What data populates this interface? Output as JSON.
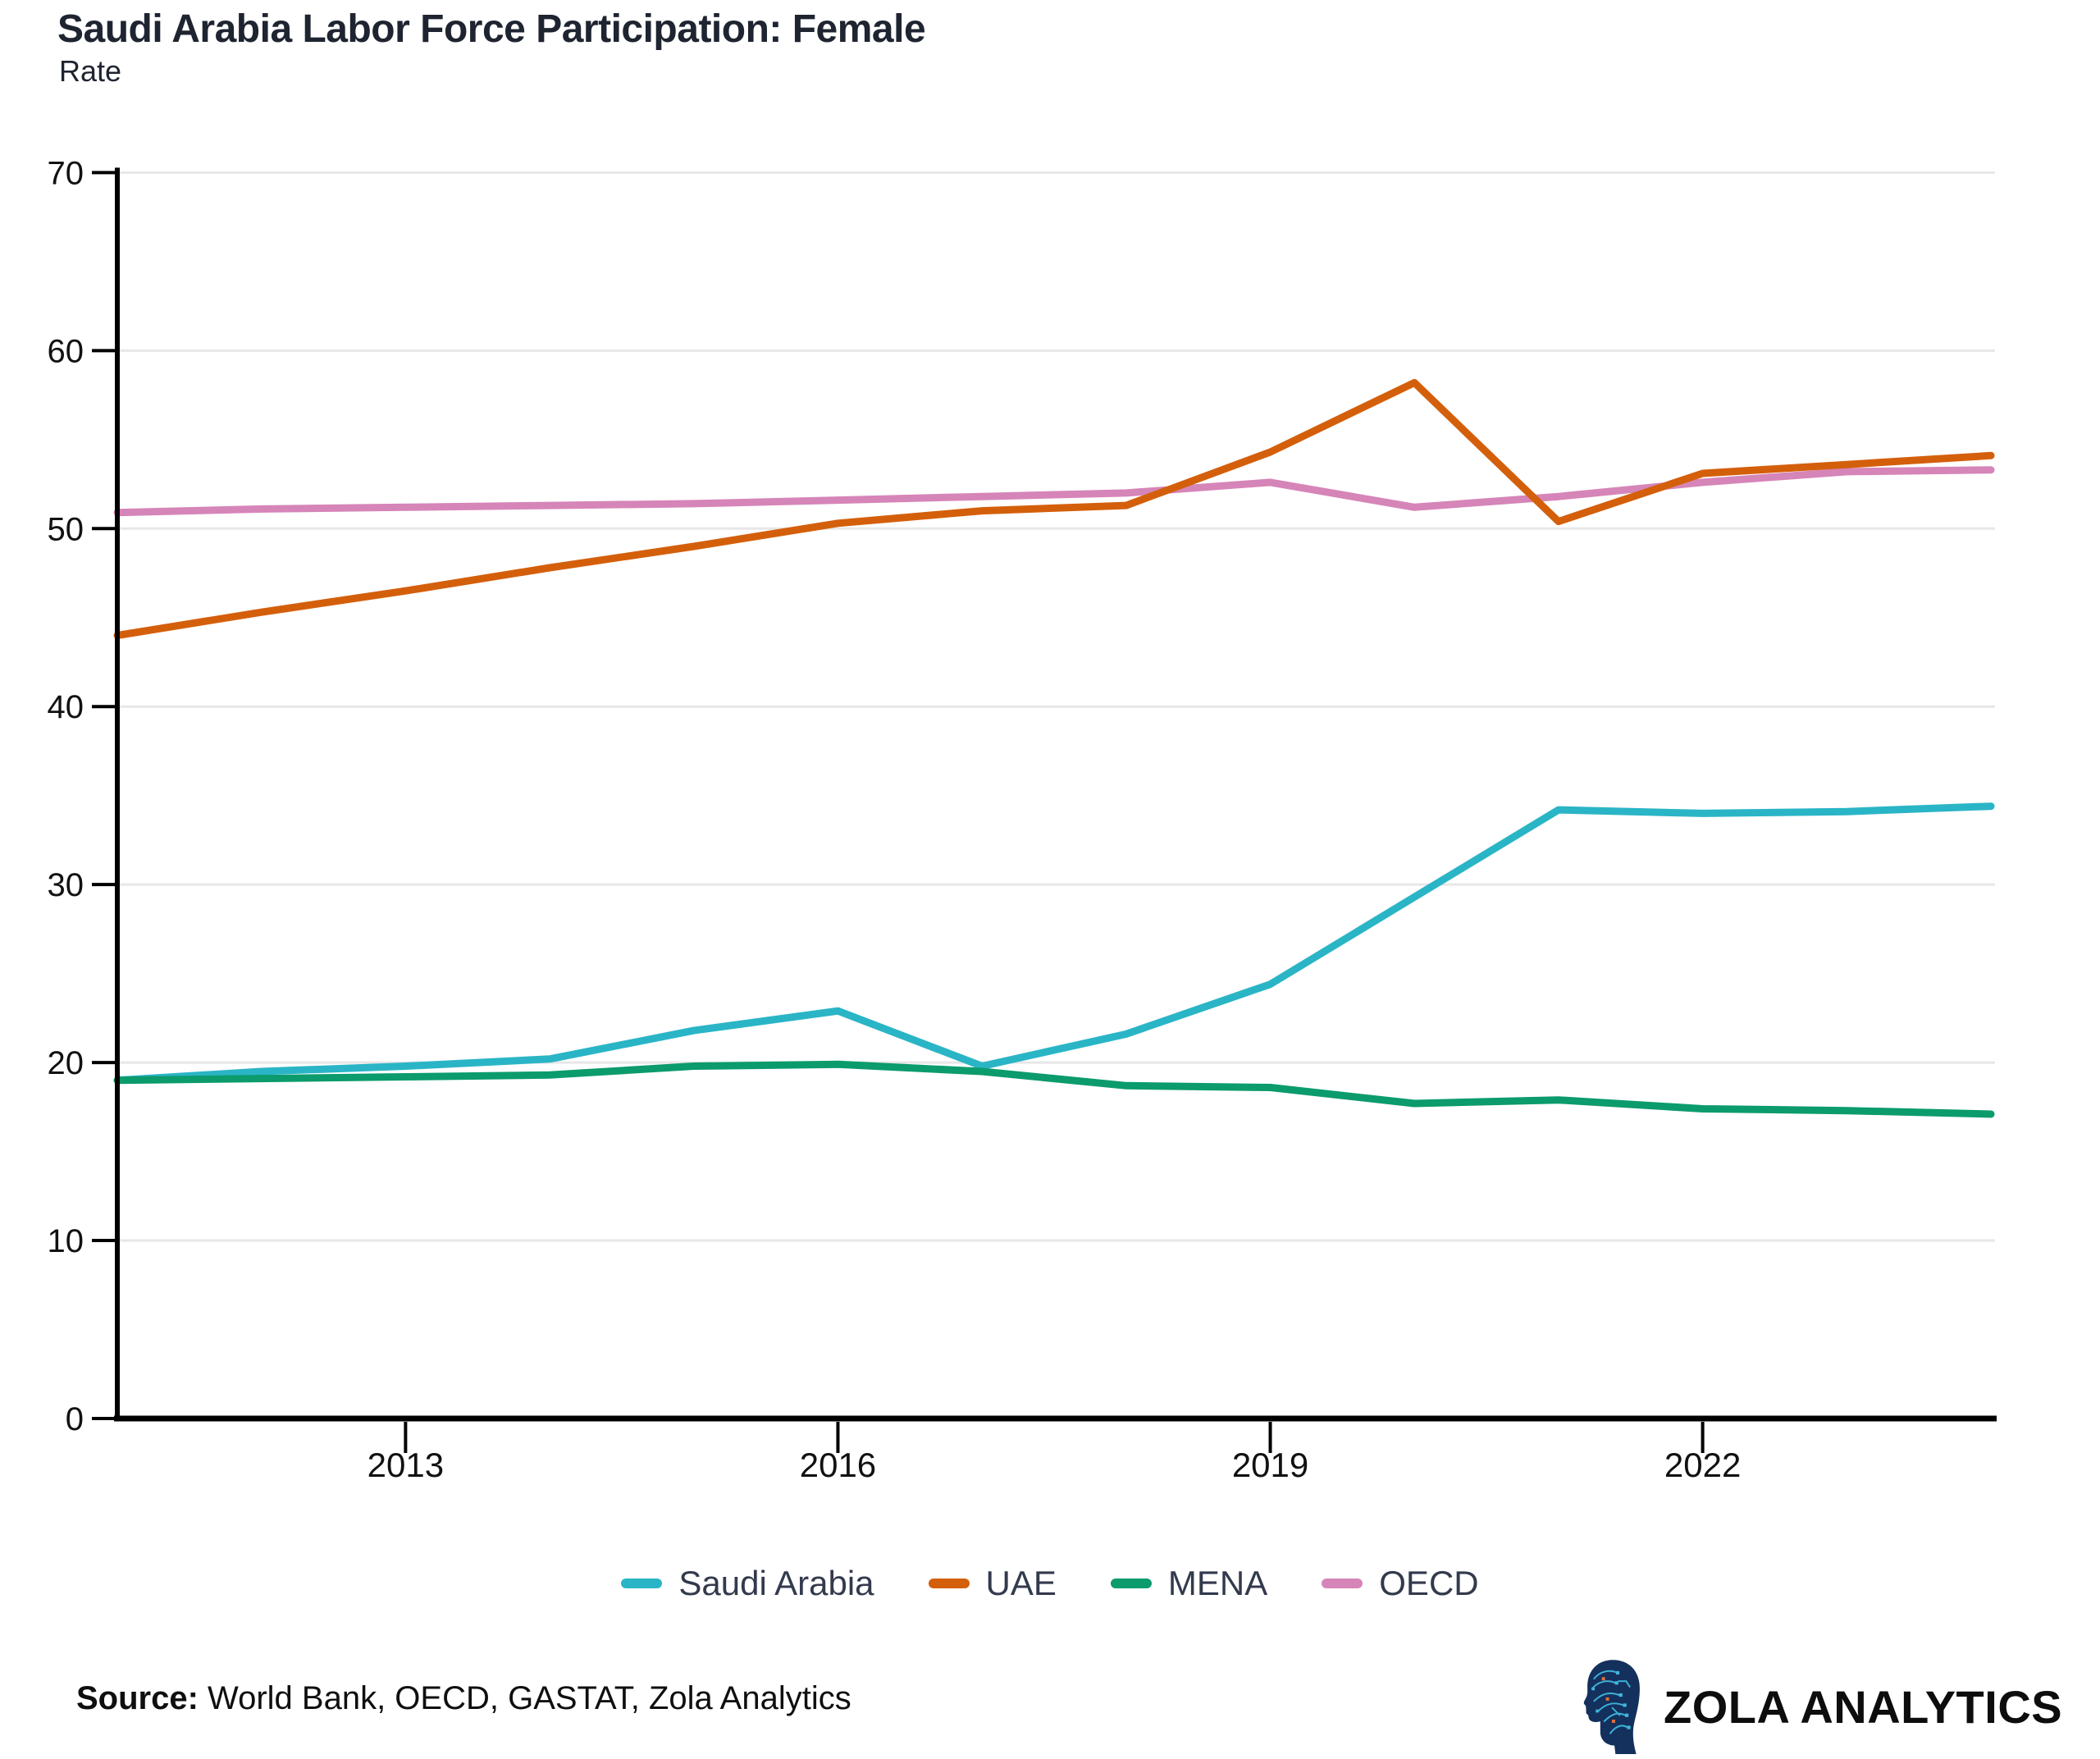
{
  "title": "Saudi Arabia Labor Force Participation: Female",
  "subtitle": "Rate",
  "source": {
    "label": "Source:",
    "text": " World Bank, OECD, GASTAT, Zola Analytics"
  },
  "brand": {
    "name": "ZOLA ANALYTICS",
    "icon": "circuit-head-icon",
    "icon_color": "#14305c",
    "icon_accent": "#3fb6dc",
    "icon_accent2": "#e2703a"
  },
  "chart_data": {
    "type": "line",
    "x": [
      2011,
      2012,
      2013,
      2014,
      2015,
      2016,
      2017,
      2018,
      2019,
      2020,
      2021,
      2022,
      2023,
      2024
    ],
    "series": [
      {
        "name": "Saudi Arabia",
        "color": "#2ab5c6",
        "values": [
          19.0,
          19.5,
          19.8,
          20.2,
          21.8,
          22.9,
          19.8,
          21.6,
          24.4,
          29.3,
          34.2,
          34.0,
          34.1,
          34.4
        ]
      },
      {
        "name": "UAE",
        "color": "#d45f0b",
        "values": [
          44.0,
          45.3,
          46.5,
          47.8,
          49.0,
          50.3,
          51.0,
          51.3,
          54.3,
          58.2,
          50.4,
          53.1,
          53.6,
          54.1
        ]
      },
      {
        "name": "MENA",
        "color": "#0b9b6d",
        "values": [
          19.0,
          19.1,
          19.2,
          19.3,
          19.8,
          19.9,
          19.5,
          18.7,
          18.6,
          17.7,
          17.9,
          17.4,
          17.3,
          17.1
        ]
      },
      {
        "name": "OECD",
        "color": "#d685b8",
        "values": [
          50.9,
          51.1,
          51.2,
          51.3,
          51.4,
          51.6,
          51.8,
          52.0,
          52.6,
          51.2,
          51.8,
          52.6,
          53.2,
          53.3
        ]
      }
    ],
    "draw_order": [
      0,
      2,
      3,
      1
    ],
    "xticks": [
      2013,
      2016,
      2019,
      2022
    ],
    "yticks": [
      0,
      10,
      20,
      30,
      40,
      50,
      60,
      70
    ],
    "xlim": [
      2011,
      2024
    ],
    "ylim": [
      0,
      70
    ],
    "grid": "horizontal",
    "legend_position": "bottom",
    "axis_color": "#000000",
    "grid_color": "#e7e7e7",
    "tick_label_color": "#111111"
  }
}
